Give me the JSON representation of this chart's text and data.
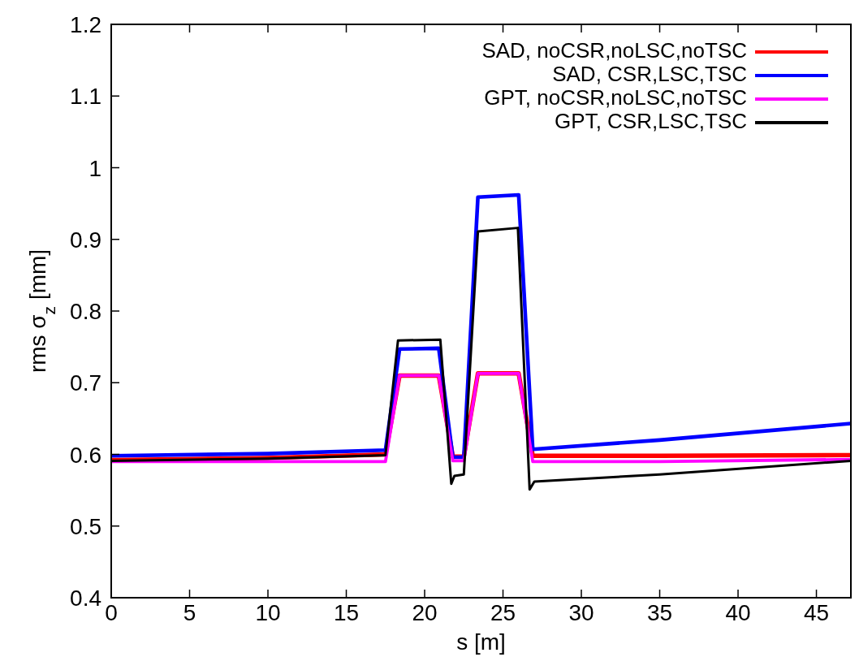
{
  "chart_data": {
    "type": "line",
    "xlabel": "s [m]",
    "ylabel": "rms σ$_{z}$ [mm]",
    "xlim": [
      0,
      47.2
    ],
    "ylim": [
      0.4,
      1.2
    ],
    "xticks": [
      0,
      5,
      10,
      15,
      20,
      25,
      30,
      35,
      40,
      45
    ],
    "yticks": [
      0.4,
      0.5,
      0.6,
      0.7,
      0.8,
      0.9,
      1,
      1.1,
      1.2
    ],
    "grid": false,
    "legend": "top right",
    "line_style": "solid",
    "series": [
      {
        "name": "SAD, noCSR,noLSC,noTSC",
        "color": "#ff0000",
        "x": [
          0,
          10,
          17.5,
          18.4,
          20.9,
          21.8,
          22.5,
          23.4,
          26.0,
          26.9,
          35,
          47.2
        ],
        "values": [
          0.592,
          0.595,
          0.6,
          0.71,
          0.71,
          0.597,
          0.597,
          0.713,
          0.713,
          0.598,
          0.598,
          0.599
        ]
      },
      {
        "name": "SAD, CSR,LSC,TSC",
        "color": "#0000ff",
        "x": [
          0,
          10,
          17.5,
          18.4,
          20.9,
          21.8,
          22.5,
          23.4,
          26.0,
          26.9,
          35,
          47.2
        ],
        "values": [
          0.598,
          0.601,
          0.606,
          0.747,
          0.748,
          0.596,
          0.596,
          0.959,
          0.962,
          0.607,
          0.62,
          0.643
        ]
      },
      {
        "name": "GPT, noCSR,noLSC,noTSC",
        "color": "#ff00ff",
        "x": [
          0,
          10,
          17.5,
          18.4,
          20.9,
          21.8,
          22.5,
          23.4,
          26.0,
          26.9,
          35,
          47.2
        ],
        "values": [
          0.59,
          0.59,
          0.59,
          0.71,
          0.71,
          0.591,
          0.591,
          0.713,
          0.713,
          0.59,
          0.59,
          0.593
        ]
      },
      {
        "name": "GPT, CSR,LSC,TSC",
        "color": "#000000",
        "x": [
          0,
          10,
          17.5,
          18.3,
          21.0,
          21.7,
          21.9,
          22.5,
          23.4,
          25.95,
          26.7,
          27,
          35,
          47.2
        ],
        "values": [
          0.591,
          0.594,
          0.599,
          0.759,
          0.76,
          0.559,
          0.57,
          0.572,
          0.911,
          0.916,
          0.551,
          0.562,
          0.572,
          0.591
        ]
      }
    ]
  }
}
